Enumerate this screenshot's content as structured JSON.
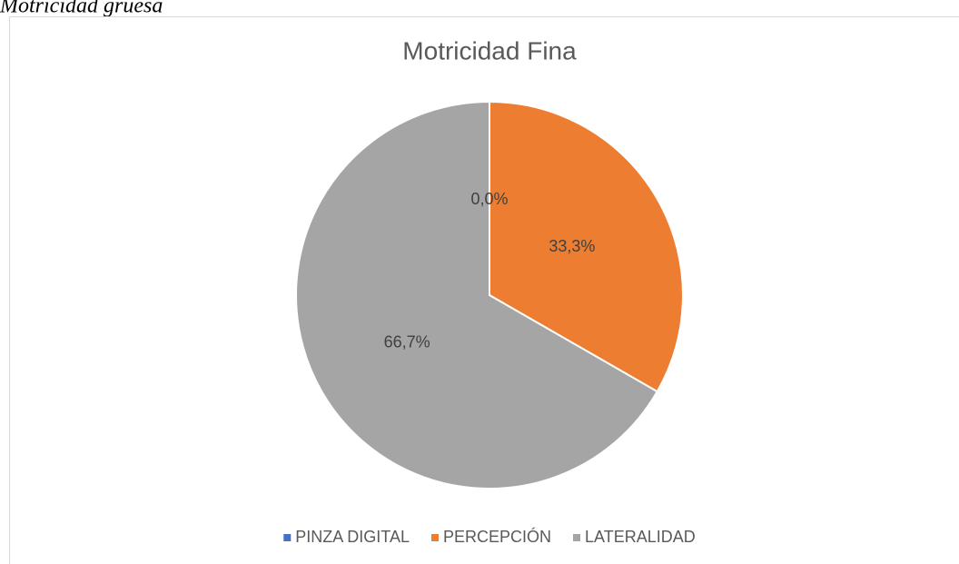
{
  "caption": "Motricidad gruesa",
  "chart_data": {
    "type": "pie",
    "title": "Motricidad Fina",
    "categories": [
      "PINZA DIGITAL",
      "PERCEPCIÓN",
      "LATERALIDAD"
    ],
    "values": [
      0,
      33.3,
      66.7
    ],
    "value_labels": [
      "0,0%",
      "33,3%",
      "66,7%"
    ],
    "colors": [
      "#4472c4",
      "#ed7d31",
      "#a5a5a5"
    ],
    "legend": "bottom"
  }
}
